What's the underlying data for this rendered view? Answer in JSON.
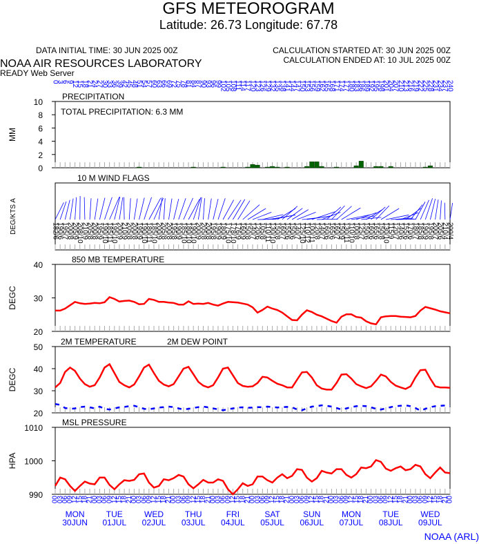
{
  "header": {
    "title": "GFS METEOROGRAM",
    "subtitle": "Latitude: 26.73 Longitude:  67.78",
    "initial_time": "DATA INITIAL TIME: 30 JUN 2025 00Z",
    "calc_started": "CALCULATION STARTED AT: 30 JUN 2025 00Z",
    "calc_ended": "CALCULATION ENDED AT: 10 JUL 2025 00Z",
    "lab": "NOAA AIR RESOURCES LABORATORY",
    "server": "READY Web Server"
  },
  "footer": {
    "credit": "NOAA (ARL)"
  },
  "time": {
    "xlim": [
      0,
      240
    ],
    "x": [
      0,
      3,
      6,
      9,
      12,
      15,
      18,
      21,
      24,
      27,
      30,
      33,
      36,
      39,
      42,
      45,
      48,
      51,
      54,
      57,
      60,
      63,
      66,
      69,
      72,
      75,
      78,
      81,
      84,
      87,
      90,
      93,
      96,
      99,
      102,
      105,
      108,
      111,
      114,
      117,
      120,
      123,
      126,
      129,
      132,
      135,
      138,
      141,
      144,
      147,
      150,
      153,
      156,
      159,
      162,
      165,
      168,
      171,
      174,
      177,
      180,
      183,
      186,
      189,
      192,
      195,
      198,
      201,
      204,
      207,
      210,
      213,
      216,
      219,
      222,
      225,
      228,
      231,
      234,
      237,
      240
    ],
    "hour_labels": [
      "00",
      "03",
      "06",
      "09",
      "12",
      "15",
      "18",
      "21",
      "00",
      "03",
      "06",
      "09",
      "12",
      "15",
      "18",
      "21",
      "00",
      "03",
      "06",
      "09",
      "12",
      "15",
      "18",
      "21",
      "00",
      "03",
      "06",
      "09",
      "12",
      "15",
      "18",
      "21",
      "00",
      "03",
      "06",
      "09",
      "12",
      "15",
      "18",
      "21",
      "00",
      "03",
      "06",
      "09",
      "12",
      "15",
      "18",
      "21",
      "00",
      "03",
      "06",
      "09",
      "12",
      "15",
      "18",
      "21",
      "00",
      "03",
      "06",
      "09",
      "12",
      "15",
      "18",
      "21",
      "00",
      "03",
      "06",
      "09",
      "12",
      "15",
      "18",
      "21",
      "00",
      "03",
      "06",
      "09",
      "12",
      "15",
      "18",
      "21",
      "00"
    ],
    "day_ticks": [
      {
        "value": 12,
        "label": "MON",
        "date": "30JUN"
      },
      {
        "value": 36,
        "label": "TUE",
        "date": "01JUL"
      },
      {
        "value": 60,
        "label": "WED",
        "date": "02JUL"
      },
      {
        "value": 84,
        "label": "THU",
        "date": "03JUL"
      },
      {
        "value": 108,
        "label": "FRI",
        "date": "04JUL"
      },
      {
        "value": 132,
        "label": "SAT",
        "date": "05JUL"
      },
      {
        "value": 156,
        "label": "SUN",
        "date": "06JUL"
      },
      {
        "value": 180,
        "label": "MON",
        "date": "07JUL"
      },
      {
        "value": 204,
        "label": "TUE",
        "date": "08JUL"
      },
      {
        "value": 228,
        "label": "WED",
        "date": "09JUL"
      }
    ]
  },
  "chart_data": [
    {
      "type": "bar",
      "title": "PRECIPITATION",
      "annotation": "TOTAL PRECIPITATION:   6.3 MM",
      "ylabel": "MM",
      "ylim": [
        0,
        10
      ],
      "yticks": [
        0,
        2,
        4,
        6,
        8,
        10
      ],
      "series": [
        {
          "color": "#006400",
          "values": [
            0,
            0,
            0,
            0,
            0,
            0,
            0,
            0,
            0,
            0,
            0,
            0,
            0,
            0,
            0,
            0,
            0,
            0.1,
            0,
            0,
            0,
            0,
            0,
            0,
            0,
            0,
            0,
            0,
            0.1,
            0,
            0,
            0,
            0,
            0,
            0.1,
            0,
            0,
            0,
            0,
            0.1,
            0.5,
            0.4,
            0,
            0.1,
            0.2,
            0.1,
            0,
            0.1,
            0,
            0,
            0,
            0.2,
            0.9,
            0.9,
            0.2,
            0,
            0,
            0.1,
            0,
            0,
            0,
            0.3,
            1.0,
            0,
            0,
            0.2,
            0.2,
            0,
            0.2,
            0,
            0,
            0,
            0,
            0,
            0,
            0.1,
            0.3,
            0,
            0,
            0,
            0
          ]
        }
      ]
    },
    {
      "type": "wind",
      "title": "10 M  WIND FLAGS",
      "ylabel": "DEG/KTS  A",
      "color": "#0000ff",
      "direction": [
        182,
        190,
        195,
        200,
        205,
        208,
        210,
        205,
        200,
        195,
        190,
        185,
        195,
        200,
        210,
        205,
        200,
        195,
        190,
        180,
        185,
        200,
        205,
        200,
        195,
        190,
        185,
        180,
        190,
        200,
        205,
        200,
        195,
        190,
        180,
        175,
        178,
        176,
        160,
        150,
        140,
        120,
        105,
        110,
        130,
        150,
        160,
        155,
        150,
        140,
        125,
        110,
        100,
        120,
        140,
        160,
        165,
        160,
        150,
        130,
        110,
        100,
        125,
        150,
        160,
        165,
        150,
        130,
        115,
        120,
        140,
        155,
        170,
        180,
        185,
        190,
        195,
        200,
        205,
        210,
        200
      ],
      "speed": [
        6,
        6,
        7,
        8,
        9,
        10,
        9,
        8,
        8,
        9,
        10,
        11,
        10,
        9,
        9,
        8,
        8,
        9,
        10,
        11,
        10,
        9,
        8,
        8,
        8,
        9,
        10,
        10,
        10,
        9,
        8,
        8,
        8,
        9,
        9,
        10,
        10,
        9,
        9,
        8,
        7,
        6,
        8,
        11,
        10,
        8,
        7,
        6,
        6,
        7,
        10,
        12,
        11,
        8,
        7,
        6,
        6,
        7,
        9,
        11,
        10,
        8,
        7,
        6,
        6,
        6,
        8,
        10,
        9,
        7,
        6,
        6,
        6,
        7,
        8,
        9,
        8,
        7,
        6,
        4,
        4
      ],
      "value_labels": [
        "182/6",
        "190/6",
        "195/7",
        "200/8",
        "205/9",
        "208/10",
        "210/9",
        "205/8",
        "200/8",
        "195/9",
        "190/10",
        "185/11",
        "195/10",
        "200/9",
        "210/9",
        "205/8",
        "200/8",
        "195/9",
        "190/10",
        "180/11",
        "185/10",
        "200/9",
        "205/8",
        "200/8",
        "195/8",
        "190/9",
        "185/10",
        "180/10",
        "190/10",
        "200/9",
        "205/8",
        "200/8",
        "195/8",
        "190/9",
        "180/9",
        "175/10",
        "178/10",
        "176/9",
        "160/9",
        "150/8",
        "140/7",
        "120/6",
        "105/8",
        "110/11",
        "130/10",
        "150/8",
        "160/7",
        "155/6",
        "150/6",
        "140/7",
        "125/10",
        "110/12",
        "100/11",
        "120/8",
        "140/7",
        "160/6",
        "165/6",
        "160/7",
        "150/9",
        "130/11",
        "110/10",
        "100/8",
        "125/7",
        "150/6",
        "160/6",
        "165/6",
        "150/8",
        "130/10",
        "115/9",
        "120/7",
        "140/6",
        "155/6",
        "170/6",
        "180/7",
        "185/8",
        "190/9",
        "195/8",
        "200/7",
        "205/6",
        "210/4",
        "200/4"
      ]
    },
    {
      "type": "line",
      "title": "850 MB  TEMPERATURE",
      "ylabel": "DEGC",
      "ylim": [
        20,
        40
      ],
      "yticks": [
        20,
        30,
        40
      ],
      "series": [
        {
          "color": "#ff0000",
          "values": [
            26.2,
            26.2,
            26.8,
            27.8,
            28.8,
            28.4,
            28.2,
            28.3,
            28.5,
            28.4,
            28.7,
            30.2,
            29.7,
            28.9,
            29.1,
            29.2,
            28.8,
            28.1,
            28.2,
            29.7,
            29.4,
            28.8,
            28.8,
            28.6,
            28.5,
            28.0,
            28.0,
            29.0,
            28.2,
            28.3,
            28.2,
            28.5,
            28.0,
            27.7,
            28.3,
            28.8,
            28.7,
            28.6,
            28.3,
            28.0,
            27.2,
            25.6,
            26.4,
            27.4,
            26.8,
            26.4,
            25.6,
            24.5,
            23.4,
            23.3,
            25.0,
            26.3,
            25.8,
            25.0,
            24.5,
            23.8,
            23.1,
            22.6,
            24.4,
            25.1,
            25.1,
            24.3,
            24.1,
            23.0,
            22.4,
            22.1,
            24.2,
            24.5,
            24.6,
            24.6,
            24.4,
            24.3,
            24.2,
            24.6,
            26.2,
            27.3,
            26.9,
            26.5,
            26.0,
            25.7,
            25.4
          ]
        }
      ]
    },
    {
      "type": "line",
      "ylabel": "DEGC",
      "ylim": [
        20,
        50
      ],
      "yticks": [
        20,
        30,
        40,
        50
      ],
      "series": [
        {
          "name": "2M TEMPERATURE",
          "color": "#ff0000",
          "values": [
            31.5,
            33.5,
            38.5,
            40.5,
            39.0,
            35.5,
            33.0,
            31.8,
            32.5,
            36.0,
            40.5,
            42.0,
            38.0,
            34.0,
            32.5,
            31.5,
            32.8,
            36.5,
            40.5,
            41.8,
            38.0,
            34.5,
            32.8,
            32.0,
            33.0,
            36.5,
            40.0,
            40.8,
            37.5,
            34.0,
            32.3,
            31.5,
            32.5,
            36.0,
            40.0,
            40.5,
            37.0,
            33.5,
            32.2,
            31.8,
            32.0,
            33.5,
            36.3,
            36.0,
            34.5,
            33.2,
            32.5,
            31.5,
            31.5,
            35.0,
            38.3,
            38.5,
            36.0,
            32.5,
            31.0,
            30.5,
            30.5,
            33.5,
            37.3,
            37.5,
            35.5,
            33.0,
            32.0,
            31.2,
            32.0,
            34.5,
            37.3,
            36.5,
            34.0,
            32.3,
            31.5,
            30.8,
            32.0,
            36.0,
            39.3,
            39.5,
            35.5,
            32.0,
            31.5,
            31.5,
            31.3
          ]
        },
        {
          "name": "2M  DEW POINT",
          "color": "#0000ff",
          "dash": true,
          "values": [
            24.0,
            23.6,
            22.2,
            21.8,
            22.0,
            22.6,
            22.8,
            22.5,
            22.0,
            22.8,
            21.8,
            21.5,
            22.0,
            22.5,
            22.7,
            23.0,
            23.2,
            22.6,
            21.8,
            21.6,
            22.0,
            22.4,
            22.6,
            22.8,
            22.6,
            22.0,
            21.5,
            21.8,
            22.2,
            22.6,
            22.8,
            22.5,
            22.0,
            21.6,
            21.2,
            21.6,
            22.0,
            22.4,
            22.5,
            22.3,
            22.4,
            22.6,
            22.5,
            22.8,
            22.6,
            22.4,
            22.6,
            22.7,
            22.5,
            21.5,
            21.2,
            22.0,
            22.8,
            23.0,
            23.4,
            23.2,
            22.8,
            22.2,
            21.5,
            22.0,
            22.6,
            23.0,
            23.2,
            23.0,
            22.5,
            21.8,
            21.5,
            22.0,
            22.6,
            23.0,
            23.2,
            23.4,
            23.0,
            22.2,
            21.0,
            21.8,
            22.6,
            23.0,
            23.2,
            23.3,
            23.2
          ]
        }
      ]
    },
    {
      "type": "line",
      "title": "MSL PRESSURE",
      "ylabel": "HPA",
      "ylim": [
        990,
        1010
      ],
      "yticks": [
        990,
        1000,
        1010
      ],
      "series": [
        {
          "color": "#ff0000",
          "values": [
            992.5,
            995.0,
            994.5,
            992.5,
            991.0,
            992.5,
            993.8,
            993.2,
            993.0,
            995.0,
            995.0,
            992.8,
            991.5,
            993.0,
            994.2,
            994.0,
            994.3,
            996.0,
            996.2,
            993.5,
            992.0,
            992.5,
            994.5,
            994.2,
            994.8,
            995.8,
            995.3,
            993.0,
            991.8,
            993.0,
            994.3,
            993.5,
            993.5,
            994.5,
            994.0,
            991.5,
            990.0,
            991.5,
            993.3,
            992.5,
            993.0,
            995.3,
            995.3,
            994.2,
            993.5,
            995.0,
            996.0,
            994.8,
            995.5,
            997.5,
            997.3,
            995.0,
            993.8,
            994.8,
            997.0,
            996.5,
            996.2,
            997.5,
            997.5,
            995.8,
            995.0,
            996.0,
            998.0,
            997.8,
            998.3,
            1000.2,
            999.7,
            997.7,
            997.0,
            997.8,
            998.3,
            997.2,
            997.5,
            998.8,
            998.3,
            996.0,
            994.8,
            996.5,
            998.0,
            996.5,
            996.3
          ]
        }
      ]
    }
  ]
}
